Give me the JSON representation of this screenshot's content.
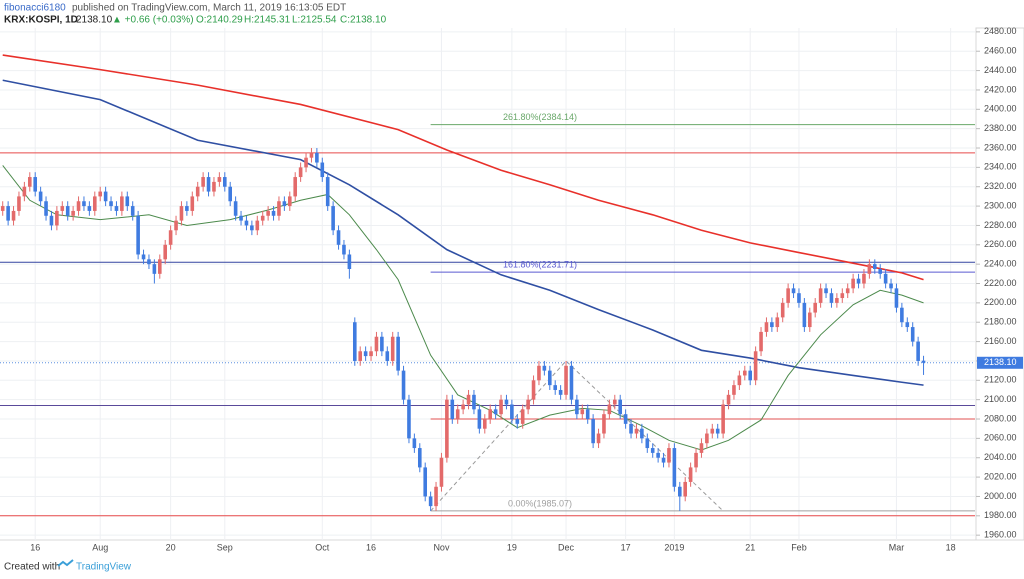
{
  "header": {
    "publisher": "fibonacci6180",
    "published": "published on TradingView.com, March 11, 2019 16:13:05 EDT",
    "symbol": "KRX:KOSPI, 1D",
    "last": "2138.10",
    "change": "▲ +0.66 (+0.03%)",
    "ohlc": [
      "O:2140.29",
      "H:2145.31",
      "L:2125.54",
      "C:2138.10"
    ]
  },
  "footer": {
    "created": "Created with",
    "brand": "TradingView"
  },
  "chart_data": {
    "type": "candlestick",
    "up_color": "#e36a6a",
    "down_color": "#3f7be0",
    "grid": true,
    "categories": [
      null,
      null,
      null,
      null,
      null,
      null,
      "16",
      null,
      null,
      null,
      null,
      null,
      null,
      null,
      null,
      null,
      null,
      null,
      "Aug",
      null,
      null,
      null,
      null,
      null,
      null,
      null,
      null,
      null,
      null,
      null,
      null,
      "20",
      null,
      null,
      null,
      null,
      null,
      null,
      null,
      null,
      null,
      "Sep",
      null,
      null,
      null,
      null,
      null,
      null,
      null,
      null,
      null,
      null,
      null,
      null,
      null,
      null,
      null,
      null,
      null,
      "Oct",
      null,
      null,
      null,
      null,
      null,
      null,
      null,
      null,
      "16",
      null,
      null,
      null,
      null,
      null,
      null,
      null,
      null,
      null,
      null,
      null,
      null,
      "Nov",
      null,
      null,
      null,
      null,
      null,
      null,
      null,
      null,
      null,
      null,
      null,
      null,
      "19",
      null,
      null,
      null,
      null,
      null,
      null,
      null,
      null,
      null,
      "Dec",
      null,
      null,
      null,
      null,
      null,
      null,
      null,
      null,
      null,
      null,
      "17",
      null,
      null,
      null,
      null,
      null,
      null,
      null,
      null,
      "2019",
      null,
      null,
      null,
      null,
      null,
      null,
      null,
      null,
      null,
      null,
      null,
      null,
      null,
      "21",
      null,
      null,
      null,
      null,
      null,
      null,
      null,
      null,
      "Feb",
      null,
      null,
      null,
      null,
      null,
      null,
      null,
      null,
      null,
      null,
      null,
      null,
      null,
      null,
      null,
      null,
      null,
      "Mar",
      null,
      null,
      null,
      null,
      null,
      null,
      null,
      null,
      null,
      "18",
      null,
      null,
      null,
      null
    ],
    "open": [
      2295,
      2300,
      2285,
      2295,
      2310,
      2320,
      2330,
      2315,
      2305,
      2290,
      2280,
      2295,
      2300,
      2290,
      2295,
      2305,
      2300,
      2295,
      2310,
      2315,
      2305,
      2300,
      2295,
      2310,
      2300,
      2290,
      2250,
      2245,
      2240,
      2230,
      2245,
      2260,
      2275,
      2285,
      2300,
      2295,
      2310,
      2320,
      2330,
      2315,
      2325,
      2330,
      2320,
      2305,
      2290,
      2285,
      2280,
      2275,
      2285,
      2290,
      2295,
      2290,
      2305,
      2300,
      2310,
      2330,
      2340,
      2350,
      2355,
      2345,
      2330,
      2300,
      2275,
      2260,
      2250,
      2180,
      2140,
      2150,
      2145,
      2150,
      2165,
      2150,
      2140,
      2165,
      2130,
      2100,
      2060,
      2050,
      2030,
      2000,
      1990,
      2010,
      2040,
      2100,
      2080,
      2090,
      2095,
      2105,
      2090,
      2070,
      2080,
      2090,
      2085,
      2100,
      2095,
      2080,
      2075,
      2090,
      2100,
      2120,
      2135,
      2130,
      2115,
      2110,
      2105,
      2135,
      2100,
      2085,
      2090,
      2080,
      2055,
      2065,
      2085,
      2095,
      2100,
      2085,
      2075,
      2065,
      2070,
      2060,
      2050,
      2045,
      2040,
      2035,
      2050,
      2010,
      2000,
      2015,
      2030,
      2045,
      2055,
      2065,
      2070,
      2065,
      2095,
      2105,
      2115,
      2125,
      2130,
      2120,
      2150,
      2170,
      2180,
      2175,
      2185,
      2200,
      2215,
      2210,
      2200,
      2175,
      2190,
      2200,
      2215,
      2210,
      2200,
      2205,
      2210,
      2215,
      2225,
      2220,
      2230,
      2240,
      2235,
      2230,
      2220,
      2215,
      2195,
      2180,
      2175,
      2160,
      2140.29,
      null,
      null,
      null,
      null,
      null,
      null,
      null,
      null,
      null
    ],
    "high": [
      2305,
      2305,
      2300,
      2315,
      2325,
      2335,
      2335,
      2320,
      2310,
      2295,
      2300,
      2305,
      2305,
      2300,
      2310,
      2310,
      2305,
      2315,
      2320,
      2320,
      2310,
      2305,
      2315,
      2315,
      2305,
      2295,
      2255,
      2250,
      2245,
      2250,
      2265,
      2280,
      2290,
      2305,
      2305,
      2315,
      2325,
      2335,
      2335,
      2330,
      2335,
      2335,
      2325,
      2310,
      2295,
      2290,
      2285,
      2290,
      2295,
      2300,
      2300,
      2310,
      2310,
      2315,
      2335,
      2345,
      2355,
      2360,
      2360,
      2350,
      2335,
      2305,
      2280,
      2265,
      2255,
      2185,
      2155,
      2155,
      2155,
      2170,
      2170,
      2155,
      2170,
      2170,
      2135,
      2105,
      2065,
      2055,
      2035,
      2005,
      2015,
      2045,
      2105,
      2105,
      2095,
      2100,
      2110,
      2110,
      2095,
      2085,
      2095,
      2095,
      2105,
      2105,
      2100,
      2085,
      2095,
      2105,
      2125,
      2140,
      2140,
      2135,
      2120,
      2115,
      2140,
      2140,
      2105,
      2095,
      2095,
      2085,
      2070,
      2090,
      2100,
      2105,
      2105,
      2090,
      2080,
      2075,
      2075,
      2065,
      2055,
      2050,
      2045,
      2055,
      2055,
      2015,
      2020,
      2035,
      2050,
      2060,
      2070,
      2075,
      2075,
      2100,
      2110,
      2120,
      2130,
      2135,
      2135,
      2155,
      2175,
      2185,
      2185,
      2190,
      2205,
      2220,
      2220,
      2215,
      2205,
      2195,
      2205,
      2220,
      2220,
      2215,
      2210,
      2215,
      2220,
      2230,
      2230,
      2235,
      2245,
      2245,
      2240,
      2235,
      2225,
      2220,
      2200,
      2185,
      2180,
      2165,
      2145.31,
      null,
      null,
      null,
      null,
      null,
      null,
      null,
      null,
      null
    ],
    "low": [
      2290,
      2280,
      2280,
      2290,
      2305,
      2315,
      2310,
      2300,
      2285,
      2275,
      2275,
      2290,
      2285,
      2285,
      2290,
      2295,
      2290,
      2290,
      2305,
      2300,
      2295,
      2290,
      2290,
      2295,
      2285,
      2245,
      2240,
      2235,
      2220,
      2225,
      2240,
      2255,
      2270,
      2280,
      2290,
      2290,
      2305,
      2315,
      2310,
      2310,
      2320,
      2315,
      2300,
      2285,
      2280,
      2275,
      2270,
      2270,
      2280,
      2285,
      2285,
      2285,
      2295,
      2295,
      2305,
      2325,
      2335,
      2345,
      2340,
      2325,
      2295,
      2270,
      2255,
      2245,
      2225,
      2135,
      2135,
      2140,
      2140,
      2145,
      2145,
      2135,
      2135,
      2125,
      2095,
      2055,
      2045,
      2025,
      1995,
      1985,
      1985,
      2005,
      2035,
      2075,
      2075,
      2085,
      2090,
      2085,
      2065,
      2065,
      2075,
      2080,
      2080,
      2090,
      2075,
      2070,
      2070,
      2085,
      2095,
      2115,
      2125,
      2110,
      2105,
      2100,
      2100,
      2095,
      2080,
      2080,
      2075,
      2050,
      2050,
      2060,
      2080,
      2090,
      2080,
      2070,
      2060,
      2060,
      2055,
      2045,
      2040,
      2035,
      2030,
      2030,
      2005,
      1985,
      1995,
      2010,
      2025,
      2040,
      2050,
      2060,
      2060,
      2060,
      2090,
      2100,
      2110,
      2120,
      2115,
      2115,
      2145,
      2165,
      2170,
      2170,
      2180,
      2195,
      2205,
      2195,
      2170,
      2170,
      2185,
      2195,
      2205,
      2195,
      2195,
      2200,
      2205,
      2210,
      2215,
      2215,
      2225,
      2230,
      2225,
      2215,
      2210,
      2190,
      2175,
      2170,
      2155,
      2135,
      2125.54,
      null,
      null,
      null,
      null,
      null,
      null,
      null,
      null,
      null
    ],
    "close": [
      2300,
      2285,
      2295,
      2310,
      2320,
      2330,
      2315,
      2305,
      2290,
      2280,
      2295,
      2300,
      2290,
      2295,
      2305,
      2300,
      2295,
      2310,
      2315,
      2305,
      2300,
      2295,
      2310,
      2300,
      2290,
      2250,
      2245,
      2240,
      2230,
      2245,
      2260,
      2275,
      2285,
      2300,
      2295,
      2310,
      2320,
      2330,
      2315,
      2325,
      2330,
      2320,
      2305,
      2290,
      2285,
      2280,
      2275,
      2285,
      2290,
      2295,
      2290,
      2305,
      2300,
      2310,
      2330,
      2340,
      2350,
      2355,
      2345,
      2330,
      2300,
      2275,
      2260,
      2250,
      2235,
      2140,
      2150,
      2145,
      2150,
      2165,
      2150,
      2140,
      2165,
      2130,
      2100,
      2060,
      2050,
      2030,
      2000,
      1990,
      2010,
      2040,
      2100,
      2080,
      2090,
      2095,
      2105,
      2090,
      2070,
      2080,
      2090,
      2085,
      2100,
      2095,
      2080,
      2075,
      2090,
      2100,
      2120,
      2135,
      2130,
      2115,
      2110,
      2105,
      2135,
      2100,
      2085,
      2090,
      2080,
      2055,
      2065,
      2085,
      2095,
      2100,
      2085,
      2075,
      2065,
      2070,
      2060,
      2050,
      2045,
      2040,
      2035,
      2050,
      2010,
      2000,
      2015,
      2030,
      2045,
      2055,
      2065,
      2070,
      2065,
      2095,
      2105,
      2115,
      2125,
      2130,
      2120,
      2150,
      2170,
      2180,
      2175,
      2185,
      2200,
      2215,
      2210,
      2200,
      2175,
      2190,
      2200,
      2215,
      2210,
      2200,
      2205,
      2210,
      2215,
      2225,
      2220,
      2230,
      2240,
      2235,
      2230,
      2220,
      2215,
      2195,
      2180,
      2175,
      2160,
      2140,
      2138.1,
      null,
      null,
      null,
      null,
      null,
      null,
      null,
      null,
      null
    ],
    "lines": [
      {
        "color": "#e8302a",
        "x": [
          0,
          18,
          36,
          55,
          73,
          82,
          92,
          101,
          110,
          120,
          129,
          138,
          147,
          157,
          166,
          170
        ],
        "values": [
          2456,
          2441,
          2425,
          2405,
          2379,
          2358,
          2337,
          2322,
          2306,
          2291,
          2275,
          2262,
          2252,
          2241,
          2231,
          2224
        ]
      },
      {
        "color": "#2f4fa3",
        "x": [
          0,
          18,
          36,
          55,
          64,
          73,
          82,
          92,
          101,
          110,
          120,
          129,
          138,
          147,
          157,
          166,
          170
        ],
        "values": [
          2430,
          2410,
          2368,
          2348,
          2322,
          2291,
          2255,
          2229,
          2213,
          2193,
          2172,
          2151,
          2143,
          2133,
          2125,
          2118,
          2115
        ]
      },
      {
        "color": "#4c8a4c",
        "x": [
          0,
          5,
          10,
          18,
          27,
          34,
          42,
          49,
          55,
          60,
          64,
          69,
          73,
          79,
          84,
          90,
          95,
          101,
          107,
          112,
          118,
          123,
          129,
          134,
          140,
          145,
          151,
          157,
          162,
          166,
          170
        ],
        "values": [
          2342,
          2306,
          2291,
          2286,
          2291,
          2280,
          2286,
          2296,
          2306,
          2312,
          2291,
          2255,
          2224,
          2146,
          2105,
          2089,
          2071,
          2084,
          2091,
          2089,
          2073,
          2058,
          2048,
          2058,
          2079,
          2125,
          2167,
          2198,
          2213,
          2208,
          2200
        ]
      }
    ],
    "hlines": [
      {
        "value": 2355,
        "color": "#e84a4a"
      },
      {
        "value": 2242,
        "color": "#3344a0"
      },
      {
        "value": 2094,
        "color": "#5a4a9a"
      },
      {
        "value": 1980,
        "color": "#e84a4a"
      }
    ],
    "fib": {
      "color": "#9a9a9a",
      "x": [
        79,
        104,
        133
      ],
      "values": [
        1985,
        2140,
        1985
      ],
      "levels": [
        {
          "value": 2384.14,
          "label": "261.80%(2384.14)",
          "color": "#6aa86a"
        },
        {
          "value": 2231.71,
          "label": "161.80%(2231.71)",
          "color": "#5a5ad0"
        },
        {
          "value": 2080,
          "color": "#e05050"
        },
        {
          "value": 1985.07,
          "label": "0.00%(1985.07)",
          "color": "#a0a0a0"
        }
      ]
    },
    "last_price": {
      "value": 2138.1,
      "label": "2138.10"
    },
    "ylim": [
      1955,
      2484
    ],
    "yticks": [
      {
        "value": 1960,
        "label": "1960.00"
      },
      {
        "value": 1980,
        "label": "1980.00"
      },
      {
        "value": 2000,
        "label": "2000.00"
      },
      {
        "value": 2020,
        "label": "2020.00"
      },
      {
        "value": 2040,
        "label": "2040.00"
      },
      {
        "value": 2060,
        "label": "2060.00"
      },
      {
        "value": 2080,
        "label": "2080.00"
      },
      {
        "value": 2100,
        "label": "2100.00"
      },
      {
        "value": 2120,
        "label": "2120.00"
      },
      {
        "value": 2140,
        "label": "2140.00"
      },
      {
        "value": 2160,
        "label": "2160.00"
      },
      {
        "value": 2180,
        "label": "2180.00"
      },
      {
        "value": 2200,
        "label": "2200.00"
      },
      {
        "value": 2220,
        "label": "2220.00"
      },
      {
        "value": 2240,
        "label": "2240.00"
      },
      {
        "value": 2260,
        "label": "2260.00"
      },
      {
        "value": 2280,
        "label": "2280.00"
      },
      {
        "value": 2300,
        "label": "2300.00"
      },
      {
        "value": 2320,
        "label": "2320.00"
      },
      {
        "value": 2340,
        "label": "2340.00"
      },
      {
        "value": 2360,
        "label": "2360.00"
      },
      {
        "value": 2380,
        "label": "2380.00"
      },
      {
        "value": 2400,
        "label": "2400.00"
      },
      {
        "value": 2420,
        "label": "2420.00"
      },
      {
        "value": 2440,
        "label": "2440.00"
      },
      {
        "value": 2460,
        "label": "2460.00"
      },
      {
        "value": 2480,
        "label": "2480.00"
      }
    ]
  }
}
